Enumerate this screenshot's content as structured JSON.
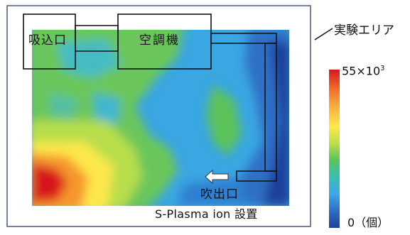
{
  "area_label": "実験エリア",
  "equipment": {
    "inlet_label": "吸込口",
    "ac_label": "空調機",
    "outlet_label": "吹出口"
  },
  "device_label": "S-Plasma ion 設置",
  "color_scale": {
    "max_label": "55×10",
    "max_exponent": "3",
    "min_label": "0（個）",
    "colors": [
      "#d7191c",
      "#f06a2a",
      "#fbb040",
      "#fde84b",
      "#b8de4c",
      "#5cc35a",
      "#3bbfae",
      "#3fa9e6",
      "#2f6fc4",
      "#1f3f9b"
    ]
  },
  "icons": [
    "left-arrow-icon"
  ]
}
